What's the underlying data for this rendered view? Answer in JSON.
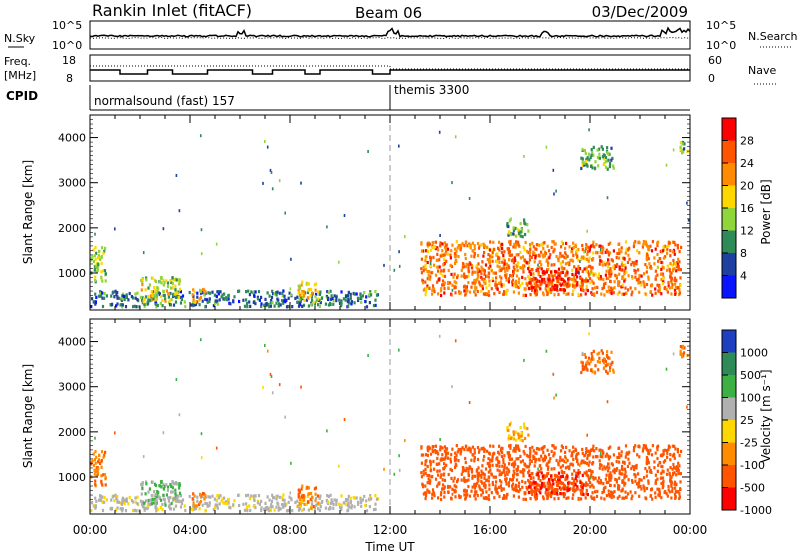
{
  "header": {
    "title": "Rankin Inlet (fitACF)",
    "beam": "Beam 06",
    "date": "03/Dec/2009"
  },
  "noise_panel": {
    "left_label": "N.Sky",
    "right_label": "N.Search",
    "ticks": [
      "10^5",
      "10^0"
    ]
  },
  "freq_panel": {
    "left_label_1": "Freq.",
    "left_label_2": "[MHz]",
    "left_ticks": [
      "18",
      "8"
    ],
    "right_label": "Nave",
    "right_ticks": [
      "60",
      "0"
    ]
  },
  "cpid_panel": {
    "label": "CPID",
    "modes": [
      {
        "name": "normalsound (fast) 157",
        "start_hour": 0
      },
      {
        "name": "themis 3300",
        "start_hour": 12
      }
    ]
  },
  "power_panel": {
    "ylabel": "Slant Range [km]",
    "yticks": [
      1000,
      2000,
      3000,
      4000
    ],
    "ylim": [
      180,
      4500
    ],
    "colorbar": {
      "label": "Power [dB]",
      "ticks": [
        "28",
        "24",
        "20",
        "16",
        "12",
        "8",
        "4"
      ],
      "colors": [
        "#ff0000",
        "#ff5500",
        "#ff8c00",
        "#ffd700",
        "#8fd63a",
        "#2e8b57",
        "#1e40a0",
        "#0a14ff"
      ]
    }
  },
  "velocity_panel": {
    "ylabel": "Slant Range [km]",
    "yticks": [
      1000,
      2000,
      3000,
      4000
    ],
    "ylim": [
      180,
      4500
    ],
    "colorbar": {
      "label": "Velocity [m s⁻¹]",
      "ticks": [
        "1000",
        "500",
        "100",
        "25",
        "-25",
        "-100",
        "-500",
        "-1000"
      ],
      "colors": [
        "#1e3fbf",
        "#2e8b57",
        "#3cb043",
        "#b0b0b0",
        "#ffd700",
        "#ff8c00",
        "#ff5500",
        "#ff0000"
      ]
    }
  },
  "time_axis": {
    "xlabel": "Time UT",
    "ticks": [
      "00:00",
      "04:00",
      "08:00",
      "12:00",
      "16:00",
      "20:00",
      "00:00"
    ],
    "xlim_hours": [
      0,
      24
    ]
  },
  "chart_data": {
    "type": "heatmap",
    "title": "Rankin Inlet (fitACF)",
    "xlabel": "Time UT",
    "ylabel": "Slant Range [km]",
    "xlim_hours": [
      0,
      24
    ],
    "ylim_km": [
      180,
      4500
    ],
    "mode_change_hour": 12,
    "echo_regions": [
      {
        "t0": 0.0,
        "t1": 0.6,
        "r0": 800,
        "r1": 1600,
        "power_db": 16,
        "velocity": -100
      },
      {
        "t0": 0.0,
        "t1": 11.5,
        "r0": 250,
        "r1": 600,
        "power_db": 10,
        "velocity": 50
      },
      {
        "t0": 2.0,
        "t1": 3.6,
        "r0": 350,
        "r1": 900,
        "power_db": 18,
        "velocity": 100
      },
      {
        "t0": 4.0,
        "t1": 4.6,
        "r0": 350,
        "r1": 650,
        "power_db": 20,
        "velocity": -100
      },
      {
        "t0": 8.3,
        "t1": 9.1,
        "r0": 300,
        "r1": 800,
        "power_db": 20,
        "velocity": -100
      },
      {
        "t0": 13.2,
        "t1": 23.6,
        "r0": 500,
        "r1": 1700,
        "power_db": 26,
        "velocity": -300
      },
      {
        "t0": 17.5,
        "t1": 20.0,
        "r0": 600,
        "r1": 1100,
        "power_db": 30,
        "velocity": -500
      },
      {
        "t0": 16.5,
        "t1": 17.5,
        "r0": 1800,
        "r1": 2200,
        "power_db": 14,
        "velocity": -25
      },
      {
        "t0": 19.6,
        "t1": 21.0,
        "r0": 3300,
        "r1": 3800,
        "power_db": 14,
        "velocity": -100
      },
      {
        "t0": 23.5,
        "t1": 23.9,
        "r0": 3600,
        "r1": 3900,
        "power_db": 14,
        "velocity": -100
      }
    ]
  }
}
